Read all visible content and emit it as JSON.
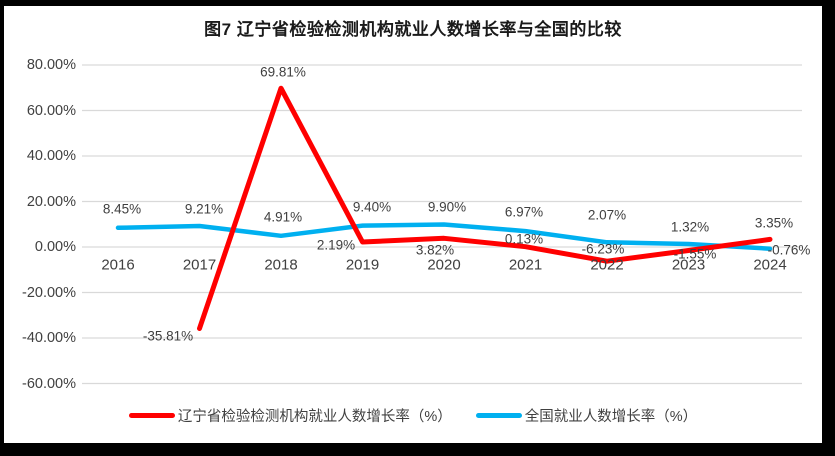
{
  "page": {
    "frame_color": "#000000",
    "canvas_color": "#FFFFFF"
  },
  "title": "图7 辽宁省检验检测机构就业人数增长率与全国的比较",
  "legend": [
    {
      "label": "辽宁省检验检测机构就业人数增长率（%）",
      "color": "#FF0000"
    },
    {
      "label": "全国就业人数增长率（%）",
      "color": "#00B0F0"
    }
  ],
  "colors": {
    "liaoning_line": "#FF0000",
    "national_line": "#00B0F0",
    "gridline": "#D9D9D9",
    "label_text": "#404040",
    "title_text": "#1a1a1a"
  },
  "chart_data": {
    "type": "line",
    "title": "图7 辽宁省检验检测机构就业人数增长率与全国的比较",
    "categories": [
      "2016",
      "2017",
      "2018",
      "2019",
      "2020",
      "2021",
      "2022",
      "2023",
      "2024"
    ],
    "series": [
      {
        "name": "辽宁省检验检测机构就业人数增长率（%）",
        "color": "#FF0000",
        "values": [
          null,
          -35.81,
          69.81,
          2.19,
          3.82,
          0.13,
          -6.23,
          -1.55,
          3.35
        ],
        "labels": [
          "",
          "-35.81%",
          "69.81%",
          "2.19%",
          "3.82%",
          "0.13%",
          "-6.23%",
          "-1.55%",
          "3.35%"
        ]
      },
      {
        "name": "全国就业人数增长率（%）",
        "color": "#00B0F0",
        "values": [
          8.45,
          9.21,
          4.91,
          9.4,
          9.9,
          6.97,
          2.07,
          1.32,
          -0.76
        ],
        "labels": [
          "8.45%",
          "9.21%",
          "4.91%",
          "9.40%",
          "9.90%",
          "6.97%",
          "2.07%",
          "1.32%",
          "-0.76%"
        ]
      }
    ],
    "y_axis": {
      "min": -60,
      "max": 80,
      "step": 20,
      "tick_labels": [
        "80.00%",
        "60.00%",
        "40.00%",
        "20.00%",
        "0.00%",
        "-20.00%",
        "-40.00%",
        "-60.00%"
      ]
    },
    "x_axis": {
      "label": ""
    },
    "grid": "horizontal",
    "legend_position": "bottom",
    "data_labels": true
  }
}
